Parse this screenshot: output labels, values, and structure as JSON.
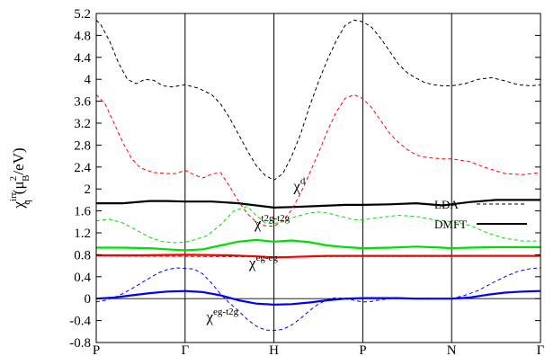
{
  "chart_data": {
    "type": "line",
    "ylabel": {
      "main": "χ",
      "sup": "irr",
      "sub": "q",
      "rest1": "(μ",
      "rest_sup": "2",
      "rest_sub": "B",
      "rest2": "/eV)"
    },
    "ylim": [
      -0.8,
      5.2
    ],
    "yticks": [
      "-0.8",
      "-0.4",
      "0",
      "0.4",
      "0.8",
      "1.2",
      "1.6",
      "2",
      "2.4",
      "2.8",
      "3.2",
      "3.6",
      "4",
      "4.4",
      "4.8",
      "5.2"
    ],
    "yvalues": [
      -0.8,
      -0.4,
      0,
      0.4,
      0.8,
      1.2,
      1.6,
      2.0,
      2.4,
      2.8,
      3.2,
      3.6,
      4.0,
      4.4,
      4.8,
      5.2
    ],
    "xlim": [
      0,
      5
    ],
    "kpoints": [
      {
        "label": "P",
        "x": 0
      },
      {
        "label": "Γ",
        "x": 1
      },
      {
        "label": "H",
        "x": 2
      },
      {
        "label": "P",
        "x": 3
      },
      {
        "label": "N",
        "x": 4
      },
      {
        "label": "Γ",
        "x": 5
      }
    ],
    "legend": {
      "position": "right",
      "items": [
        {
          "label": "LDA",
          "style": "dashed"
        },
        {
          "label": "DMFT",
          "style": "solid"
        }
      ]
    },
    "annotations": [
      {
        "id": "chi-d",
        "base": "χ",
        "sup": "d",
        "x": 2.22,
        "y": 1.96
      },
      {
        "id": "chi-t2g",
        "base": "χ",
        "sup": "t2g-t2g",
        "x": 1.78,
        "y": 1.28
      },
      {
        "id": "chi-eg",
        "base": "χ",
        "sup": "eg-eg",
        "x": 1.72,
        "y": 0.56
      },
      {
        "id": "chi-egt2g",
        "base": "χ",
        "sup": "eg-t2g",
        "x": 1.24,
        "y": -0.42
      }
    ],
    "series": [
      {
        "id": "d-lda",
        "color": "#000000",
        "style": "dashed",
        "x": [
          0,
          0.05,
          0.15,
          0.25,
          0.35,
          0.45,
          0.55,
          0.65,
          0.75,
          0.85,
          1.0,
          1.15,
          1.3,
          1.4,
          1.5,
          1.6,
          1.7,
          1.8,
          1.9,
          2.0,
          2.1,
          2.2,
          2.3,
          2.4,
          2.5,
          2.6,
          2.7,
          2.8,
          2.9,
          3.0,
          3.1,
          3.2,
          3.3,
          3.4,
          3.5,
          3.6,
          3.7,
          3.8,
          3.9,
          4.0,
          4.15,
          4.3,
          4.45,
          4.6,
          4.75,
          4.9,
          5.0
        ],
        "y": [
          5.08,
          5.0,
          4.7,
          4.3,
          4.0,
          3.92,
          4.0,
          3.98,
          3.88,
          3.86,
          3.9,
          3.84,
          3.72,
          3.55,
          3.3,
          3.0,
          2.7,
          2.43,
          2.25,
          2.16,
          2.28,
          2.6,
          3.0,
          3.5,
          3.95,
          4.35,
          4.7,
          4.98,
          5.08,
          5.05,
          4.95,
          4.75,
          4.52,
          4.28,
          4.12,
          4.02,
          3.94,
          3.9,
          3.88,
          3.88,
          3.92,
          4.0,
          4.03,
          3.97,
          3.9,
          3.88,
          3.9
        ]
      },
      {
        "id": "d-dmft",
        "color": "#000000",
        "style": "solid",
        "x": [
          0,
          0.3,
          0.6,
          0.8,
          1.0,
          1.3,
          1.6,
          1.8,
          2.0,
          2.2,
          2.5,
          2.8,
          3.0,
          3.3,
          3.6,
          3.9,
          4.0,
          4.2,
          4.5,
          4.8,
          5.0
        ],
        "y": [
          1.74,
          1.74,
          1.78,
          1.78,
          1.77,
          1.77,
          1.74,
          1.7,
          1.66,
          1.67,
          1.69,
          1.71,
          1.71,
          1.72,
          1.74,
          1.7,
          1.72,
          1.76,
          1.8,
          1.8,
          1.8
        ]
      },
      {
        "id": "t2g-lda",
        "color": "#ff0000",
        "style": "dashed",
        "x": [
          0,
          0.1,
          0.2,
          0.3,
          0.4,
          0.5,
          0.65,
          0.8,
          0.9,
          1.0,
          1.1,
          1.2,
          1.3,
          1.4,
          1.5,
          1.6,
          1.7,
          1.8,
          1.9,
          2.0,
          2.1,
          2.2,
          2.3,
          2.4,
          2.5,
          2.6,
          2.7,
          2.8,
          2.9,
          3.0,
          3.1,
          3.2,
          3.3,
          3.4,
          3.5,
          3.6,
          3.7,
          3.8,
          3.9,
          4.0,
          4.2,
          4.4,
          4.6,
          4.8,
          5.0
        ],
        "y": [
          3.72,
          3.55,
          3.2,
          2.85,
          2.55,
          2.38,
          2.3,
          2.28,
          2.28,
          2.34,
          2.26,
          2.2,
          2.27,
          2.3,
          2.05,
          1.78,
          1.55,
          1.4,
          1.33,
          1.32,
          1.42,
          1.62,
          1.92,
          2.28,
          2.65,
          3.05,
          3.4,
          3.65,
          3.72,
          3.65,
          3.48,
          3.25,
          3.02,
          2.85,
          2.72,
          2.62,
          2.58,
          2.56,
          2.55,
          2.55,
          2.5,
          2.38,
          2.28,
          2.26,
          2.3
        ]
      },
      {
        "id": "t2g-dmft-black-ghost",
        "color": "#ffffff",
        "style": "none",
        "x": [],
        "y": []
      },
      {
        "id": "t2g-green-lda",
        "color": "#00dd00",
        "style": "dashed",
        "x": [
          0,
          0.15,
          0.3,
          0.45,
          0.6,
          0.75,
          0.9,
          1.0,
          1.1,
          1.25,
          1.4,
          1.55,
          1.7,
          1.8,
          1.9,
          2.0,
          2.1,
          2.2,
          2.3,
          2.4,
          2.5,
          2.6,
          2.7,
          2.8,
          2.9,
          3.0,
          3.2,
          3.4,
          3.6,
          3.8,
          4.0,
          4.2,
          4.4,
          4.6,
          4.8,
          5.0
        ],
        "y": [
          1.42,
          1.45,
          1.38,
          1.25,
          1.12,
          1.04,
          1.02,
          1.03,
          1.07,
          1.15,
          1.35,
          1.6,
          1.68,
          1.52,
          1.38,
          1.37,
          1.4,
          1.47,
          1.52,
          1.56,
          1.58,
          1.56,
          1.52,
          1.48,
          1.44,
          1.44,
          1.48,
          1.52,
          1.5,
          1.44,
          1.4,
          1.34,
          1.2,
          1.1,
          1.05,
          1.05
        ]
      },
      {
        "id": "t2g-green-dmft",
        "color": "#00dd00",
        "style": "solid",
        "x": [
          0,
          0.3,
          0.6,
          0.8,
          1.0,
          1.2,
          1.4,
          1.6,
          1.8,
          2.0,
          2.2,
          2.4,
          2.6,
          2.8,
          3.0,
          3.3,
          3.6,
          3.9,
          4.0,
          4.2,
          4.5,
          4.8,
          5.0
        ],
        "y": [
          0.93,
          0.93,
          0.92,
          0.9,
          0.88,
          0.9,
          0.97,
          1.04,
          1.07,
          1.04,
          1.06,
          1.03,
          0.97,
          0.94,
          0.92,
          0.93,
          0.95,
          0.93,
          0.92,
          0.93,
          0.94,
          0.94,
          0.94
        ]
      },
      {
        "id": "eg-lda",
        "color": "#ff0000",
        "style": "dashed",
        "x": [
          0,
          1.0,
          2.0,
          3.0,
          4.0,
          5.0
        ],
        "y": [
          0.78,
          0.77,
          0.76,
          0.77,
          0.77,
          0.78
        ]
      },
      {
        "id": "eg-dmft",
        "color": "#ff0000",
        "style": "solid",
        "x": [
          0,
          0.5,
          1.0,
          1.5,
          1.8,
          2.0,
          2.2,
          2.6,
          3.0,
          3.5,
          4.0,
          4.5,
          5.0
        ],
        "y": [
          0.79,
          0.79,
          0.8,
          0.79,
          0.77,
          0.75,
          0.76,
          0.78,
          0.78,
          0.78,
          0.78,
          0.78,
          0.78
        ]
      },
      {
        "id": "egt2g-lda",
        "color": "#0000ff",
        "style": "dashed",
        "x": [
          0,
          0.1,
          0.25,
          0.4,
          0.55,
          0.7,
          0.8,
          0.9,
          1.0,
          1.1,
          1.2,
          1.3,
          1.4,
          1.5,
          1.6,
          1.7,
          1.8,
          1.9,
          2.0,
          2.1,
          2.2,
          2.3,
          2.4,
          2.5,
          2.6,
          2.7,
          2.8,
          2.9,
          3.0,
          3.1,
          3.2,
          3.3,
          3.4,
          3.5,
          3.6,
          3.7,
          3.8,
          3.9,
          4.0,
          4.15,
          4.3,
          4.45,
          4.6,
          4.75,
          4.9,
          5.0
        ],
        "y": [
          -0.06,
          -0.03,
          0.05,
          0.18,
          0.33,
          0.47,
          0.53,
          0.56,
          0.55,
          0.54,
          0.45,
          0.28,
          0.08,
          -0.08,
          -0.22,
          -0.38,
          -0.5,
          -0.57,
          -0.58,
          -0.56,
          -0.48,
          -0.36,
          -0.22,
          -0.1,
          -0.02,
          0.02,
          0.0,
          -0.03,
          -0.06,
          -0.05,
          -0.02,
          0.0,
          0.01,
          0.0,
          0.0,
          0.01,
          0.0,
          0.0,
          0.0,
          0.06,
          0.15,
          0.28,
          0.4,
          0.5,
          0.55,
          0.56
        ]
      },
      {
        "id": "egt2g-dmft",
        "color": "#0000ff",
        "style": "solid",
        "x": [
          0,
          0.2,
          0.4,
          0.6,
          0.8,
          1.0,
          1.2,
          1.4,
          1.6,
          1.8,
          2.0,
          2.2,
          2.4,
          2.6,
          2.8,
          3.0,
          3.2,
          3.4,
          3.6,
          3.8,
          4.0,
          4.2,
          4.4,
          4.6,
          4.8,
          5.0
        ],
        "y": [
          0.0,
          0.02,
          0.06,
          0.1,
          0.13,
          0.14,
          0.12,
          0.06,
          -0.03,
          -0.09,
          -0.11,
          -0.1,
          -0.07,
          -0.03,
          0.0,
          0.01,
          0.01,
          0.01,
          0.0,
          0.0,
          0.0,
          0.02,
          0.07,
          0.11,
          0.13,
          0.14
        ]
      }
    ]
  }
}
